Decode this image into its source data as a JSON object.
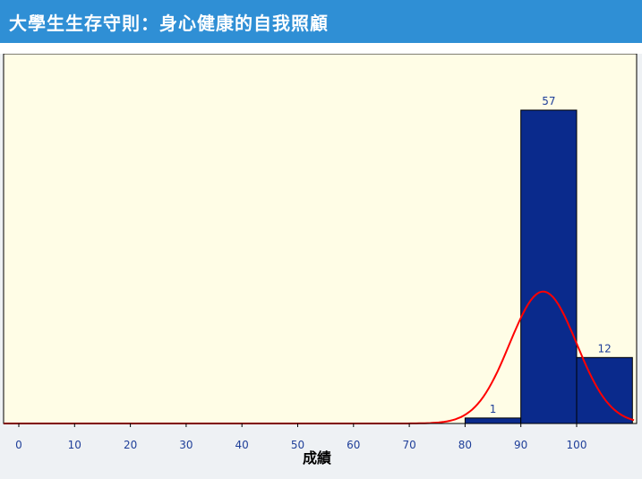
{
  "header": {
    "title": "大學生生存守則：身心健康的自我照顧"
  },
  "chart_data": {
    "type": "bar",
    "subtype": "histogram",
    "xlabel": "成績",
    "ylabel": "",
    "x_ticks": [
      0,
      10,
      20,
      30,
      40,
      50,
      60,
      70,
      80,
      90,
      100
    ],
    "bins": [
      {
        "start": 80,
        "end": 90,
        "value": 1,
        "label": "1"
      },
      {
        "start": 90,
        "end": 100,
        "value": 57,
        "label": "57"
      },
      {
        "start": 100,
        "end": 110,
        "value": 12,
        "label": "12"
      }
    ],
    "xlim": [
      -2,
      113
    ],
    "ylim": [
      0,
      63
    ],
    "bar_color": "#0a2a8c",
    "curve_color": "#ff0000",
    "background": "#fffde6",
    "curve": {
      "type": "normal",
      "mean": 94,
      "sd": 6,
      "peak": 24
    }
  },
  "colors": {
    "header_bg": "#2f8fd5",
    "tick_label": "#1f3f99"
  }
}
